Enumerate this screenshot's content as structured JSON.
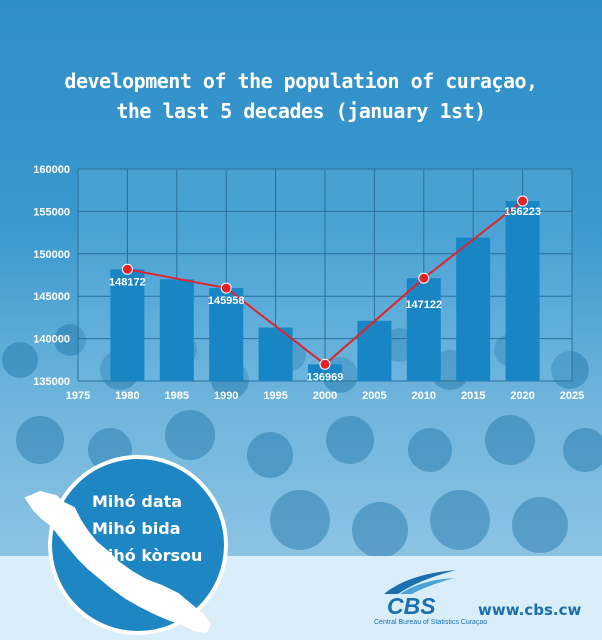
{
  "title": {
    "line1": "development of the population of curaçao,",
    "line2": "the last 5 decades (january 1st)"
  },
  "chart_data": {
    "type": "bar",
    "categories": [
      1980,
      1985,
      1990,
      1995,
      2000,
      2005,
      2010,
      2015,
      2020
    ],
    "values": [
      148172,
      147000,
      145958,
      141300,
      136969,
      142100,
      147122,
      151900,
      156223
    ],
    "line_series": {
      "x": [
        1980,
        1990,
        2000,
        2010,
        2020
      ],
      "values": [
        148172,
        145958,
        136969,
        147122,
        156223
      ]
    },
    "xlim": [
      1975,
      2025
    ],
    "xticks": [
      "1975",
      "1980",
      "1985",
      "1990",
      "1995",
      "2000",
      "2005",
      "2010",
      "2015",
      "2020",
      "2025"
    ],
    "ylim": [
      135000,
      160000
    ],
    "yticks": [
      "135000",
      "140000",
      "145000",
      "150000",
      "155000",
      "160000"
    ],
    "grid": true,
    "colors": {
      "bar": "#1886c5",
      "line": "#e2232a",
      "grid": "#2a6f9a"
    }
  },
  "badge": {
    "lines": [
      "Mihó data",
      "Mihó bida",
      "Mihó kòrsou"
    ]
  },
  "footer": {
    "logo": "CBS",
    "logo_sub": "Central Bureau of Statistics Curaçao",
    "url": "www.cbs.cw"
  }
}
